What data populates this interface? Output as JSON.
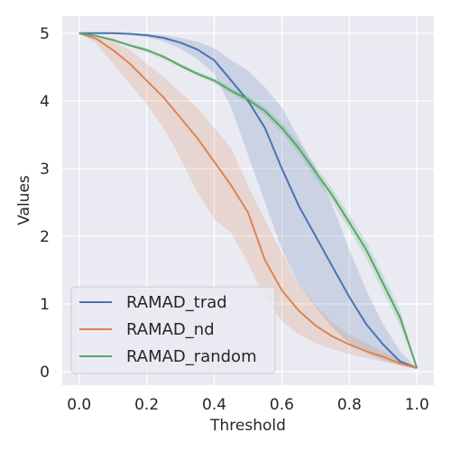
{
  "chart_data": {
    "type": "line",
    "xlabel": "Threshold",
    "ylabel": "Values",
    "xlim": [
      -0.05,
      1.05
    ],
    "ylim": [
      -0.2,
      5.25
    ],
    "xticks": [
      0.0,
      0.2,
      0.4,
      0.6,
      0.8,
      1.0
    ],
    "xtick_labels": [
      "0.0",
      "0.2",
      "0.4",
      "0.6",
      "0.8",
      "1.0"
    ],
    "yticks": [
      0,
      1,
      2,
      3,
      4,
      5
    ],
    "ytick_labels": [
      "0",
      "1",
      "2",
      "3",
      "4",
      "5"
    ],
    "grid": true,
    "legend_position": "lower-left",
    "background": "#eaeaf2",
    "series": [
      {
        "name": "RAMAD_trad",
        "color": "#4c72b0",
        "x": [
          0.0,
          0.05,
          0.1,
          0.15,
          0.2,
          0.25,
          0.3,
          0.35,
          0.4,
          0.45,
          0.5,
          0.55,
          0.6,
          0.65,
          0.7,
          0.75,
          0.8,
          0.85,
          0.9,
          0.95,
          1.0
        ],
        "y": [
          5.0,
          5.0,
          5.0,
          4.99,
          4.97,
          4.93,
          4.86,
          4.76,
          4.6,
          4.3,
          4.0,
          3.6,
          3.0,
          2.45,
          2.0,
          1.55,
          1.1,
          0.7,
          0.4,
          0.15,
          0.05
        ],
        "y_lower": [
          5.0,
          5.0,
          4.99,
          4.97,
          4.94,
          4.88,
          4.77,
          4.62,
          4.4,
          3.9,
          3.2,
          2.5,
          1.8,
          1.3,
          0.95,
          0.65,
          0.42,
          0.28,
          0.17,
          0.1,
          0.05
        ],
        "y_upper": [
          5.0,
          5.0,
          5.0,
          5.0,
          4.99,
          4.97,
          4.93,
          4.87,
          4.78,
          4.6,
          4.45,
          4.2,
          3.9,
          3.45,
          3.0,
          2.45,
          1.8,
          1.2,
          0.7,
          0.3,
          0.05
        ]
      },
      {
        "name": "RAMAD_nd",
        "color": "#dd8452",
        "x": [
          0.0,
          0.05,
          0.1,
          0.15,
          0.2,
          0.25,
          0.3,
          0.35,
          0.4,
          0.45,
          0.5,
          0.55,
          0.6,
          0.65,
          0.7,
          0.75,
          0.8,
          0.85,
          0.9,
          0.95,
          1.0
        ],
        "y": [
          5.0,
          4.92,
          4.75,
          4.55,
          4.3,
          4.05,
          3.75,
          3.45,
          3.1,
          2.75,
          2.35,
          1.65,
          1.2,
          0.9,
          0.68,
          0.52,
          0.4,
          0.3,
          0.22,
          0.12,
          0.05
        ],
        "y_lower": [
          5.0,
          4.85,
          4.55,
          4.25,
          3.95,
          3.6,
          3.15,
          2.65,
          2.25,
          2.05,
          1.6,
          1.1,
          0.75,
          0.55,
          0.42,
          0.33,
          0.26,
          0.2,
          0.15,
          0.08,
          0.04
        ],
        "y_upper": [
          5.0,
          4.97,
          4.88,
          4.75,
          4.55,
          4.35,
          4.12,
          3.9,
          3.6,
          3.3,
          2.75,
          2.25,
          1.75,
          1.3,
          0.98,
          0.72,
          0.55,
          0.42,
          0.3,
          0.18,
          0.07
        ]
      },
      {
        "name": "RAMAD_random",
        "color": "#55a868",
        "x": [
          0.0,
          0.05,
          0.1,
          0.15,
          0.2,
          0.25,
          0.3,
          0.35,
          0.4,
          0.45,
          0.5,
          0.55,
          0.6,
          0.65,
          0.7,
          0.75,
          0.8,
          0.85,
          0.9,
          0.95,
          1.0
        ],
        "y": [
          5.0,
          4.96,
          4.9,
          4.82,
          4.75,
          4.65,
          4.52,
          4.4,
          4.3,
          4.15,
          4.02,
          3.85,
          3.6,
          3.3,
          2.95,
          2.6,
          2.2,
          1.8,
          1.3,
          0.8,
          0.05
        ],
        "y_lower": [
          5.0,
          4.95,
          4.88,
          4.8,
          4.72,
          4.62,
          4.49,
          4.37,
          4.26,
          4.11,
          3.97,
          3.79,
          3.53,
          3.22,
          2.86,
          2.5,
          2.09,
          1.68,
          1.18,
          0.68,
          0.04
        ],
        "y_upper": [
          5.0,
          4.97,
          4.92,
          4.84,
          4.78,
          4.68,
          4.55,
          4.43,
          4.34,
          4.19,
          4.07,
          3.91,
          3.67,
          3.38,
          3.04,
          2.7,
          2.31,
          1.92,
          1.42,
          0.92,
          0.06
        ]
      }
    ]
  }
}
